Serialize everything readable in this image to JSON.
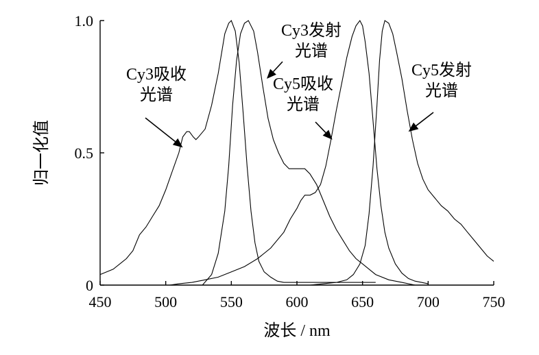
{
  "chart_data": {
    "type": "line",
    "xlabel": "波长 / nm",
    "ylabel": "归一化值",
    "xlim": [
      450,
      750
    ],
    "ylim": [
      0,
      1.0
    ],
    "xticks": [
      450,
      500,
      550,
      600,
      650,
      700,
      750
    ],
    "yticks": [
      0,
      0.5,
      1.0
    ],
    "ytick_labels": [
      "0",
      "0.5",
      "1.0"
    ],
    "grid": false,
    "series": [
      {
        "name": "Cy3吸收光谱",
        "points": [
          [
            450,
            0.04
          ],
          [
            460,
            0.06
          ],
          [
            470,
            0.1
          ],
          [
            475,
            0.13
          ],
          [
            480,
            0.19
          ],
          [
            485,
            0.22
          ],
          [
            490,
            0.26
          ],
          [
            495,
            0.3
          ],
          [
            500,
            0.36
          ],
          [
            505,
            0.43
          ],
          [
            510,
            0.5
          ],
          [
            513,
            0.56
          ],
          [
            516,
            0.58
          ],
          [
            518,
            0.58
          ],
          [
            521,
            0.56
          ],
          [
            523,
            0.55
          ],
          [
            525,
            0.56
          ],
          [
            530,
            0.59
          ],
          [
            535,
            0.68
          ],
          [
            540,
            0.8
          ],
          [
            545,
            0.95
          ],
          [
            548,
            0.99
          ],
          [
            550,
            1.0
          ],
          [
            553,
            0.96
          ],
          [
            556,
            0.84
          ],
          [
            559,
            0.65
          ],
          [
            562,
            0.45
          ],
          [
            565,
            0.28
          ],
          [
            568,
            0.16
          ],
          [
            571,
            0.09
          ],
          [
            575,
            0.05
          ],
          [
            580,
            0.03
          ],
          [
            585,
            0.015
          ],
          [
            590,
            0.01
          ],
          [
            600,
            0.01
          ],
          [
            610,
            0.01
          ],
          [
            620,
            0.01
          ],
          [
            630,
            0.01
          ],
          [
            640,
            0.01
          ],
          [
            650,
            0.01
          ],
          [
            660,
            0.01
          ]
        ]
      },
      {
        "name": "Cy3发射光谱",
        "points": [
          [
            528,
            0.0
          ],
          [
            535,
            0.04
          ],
          [
            540,
            0.12
          ],
          [
            545,
            0.28
          ],
          [
            548,
            0.45
          ],
          [
            551,
            0.68
          ],
          [
            554,
            0.85
          ],
          [
            557,
            0.95
          ],
          [
            560,
            0.99
          ],
          [
            563,
            1.0
          ],
          [
            567,
            0.96
          ],
          [
            570,
            0.88
          ],
          [
            574,
            0.75
          ],
          [
            578,
            0.63
          ],
          [
            582,
            0.55
          ],
          [
            586,
            0.5
          ],
          [
            590,
            0.46
          ],
          [
            594,
            0.44
          ],
          [
            598,
            0.44
          ],
          [
            602,
            0.44
          ],
          [
            606,
            0.44
          ],
          [
            610,
            0.42
          ],
          [
            615,
            0.38
          ],
          [
            620,
            0.32
          ],
          [
            625,
            0.26
          ],
          [
            630,
            0.21
          ],
          [
            635,
            0.17
          ],
          [
            640,
            0.13
          ],
          [
            645,
            0.1
          ],
          [
            650,
            0.08
          ],
          [
            655,
            0.06
          ],
          [
            660,
            0.04
          ],
          [
            670,
            0.02
          ],
          [
            680,
            0.01
          ],
          [
            690,
            0.0
          ]
        ]
      },
      {
        "name": "Cy5吸收光谱",
        "points": [
          [
            503,
            0.0
          ],
          [
            510,
            0.005
          ],
          [
            520,
            0.01
          ],
          [
            530,
            0.02
          ],
          [
            540,
            0.03
          ],
          [
            550,
            0.05
          ],
          [
            560,
            0.07
          ],
          [
            570,
            0.1
          ],
          [
            580,
            0.14
          ],
          [
            590,
            0.2
          ],
          [
            595,
            0.25
          ],
          [
            600,
            0.29
          ],
          [
            603,
            0.32
          ],
          [
            606,
            0.34
          ],
          [
            610,
            0.34
          ],
          [
            614,
            0.35
          ],
          [
            618,
            0.38
          ],
          [
            622,
            0.45
          ],
          [
            626,
            0.55
          ],
          [
            630,
            0.66
          ],
          [
            634,
            0.76
          ],
          [
            638,
            0.86
          ],
          [
            642,
            0.94
          ],
          [
            645,
            0.98
          ],
          [
            648,
            1.0
          ],
          [
            650,
            0.98
          ],
          [
            652,
            0.92
          ],
          [
            655,
            0.8
          ],
          [
            658,
            0.62
          ],
          [
            661,
            0.44
          ],
          [
            664,
            0.3
          ],
          [
            667,
            0.2
          ],
          [
            670,
            0.14
          ],
          [
            675,
            0.08
          ],
          [
            680,
            0.045
          ],
          [
            685,
            0.025
          ],
          [
            690,
            0.015
          ],
          [
            695,
            0.01
          ],
          [
            700,
            0.005
          ]
        ]
      },
      {
        "name": "Cy5发射光谱",
        "points": [
          [
            610,
            0.0
          ],
          [
            620,
            0.005
          ],
          [
            630,
            0.01
          ],
          [
            638,
            0.02
          ],
          [
            643,
            0.04
          ],
          [
            648,
            0.08
          ],
          [
            652,
            0.15
          ],
          [
            655,
            0.27
          ],
          [
            658,
            0.45
          ],
          [
            661,
            0.68
          ],
          [
            663,
            0.85
          ],
          [
            665,
            0.96
          ],
          [
            667,
            1.0
          ],
          [
            670,
            0.99
          ],
          [
            673,
            0.95
          ],
          [
            676,
            0.88
          ],
          [
            680,
            0.78
          ],
          [
            684,
            0.66
          ],
          [
            688,
            0.55
          ],
          [
            692,
            0.46
          ],
          [
            696,
            0.4
          ],
          [
            700,
            0.36
          ],
          [
            705,
            0.33
          ],
          [
            710,
            0.3
          ],
          [
            715,
            0.28
          ],
          [
            720,
            0.25
          ],
          [
            725,
            0.23
          ],
          [
            730,
            0.2
          ],
          [
            735,
            0.17
          ],
          [
            740,
            0.14
          ],
          [
            745,
            0.11
          ],
          [
            750,
            0.09
          ]
        ]
      }
    ],
    "annotations": [
      {
        "lines": [
          "Cy3吸收",
          "光谱"
        ],
        "target": [
          513,
          0.52
        ]
      },
      {
        "lines": [
          "Cy3发射",
          "光谱"
        ],
        "target": [
          577,
          0.78
        ]
      },
      {
        "lines": [
          "Cy5吸收",
          "光谱"
        ],
        "target": [
          627,
          0.55
        ]
      },
      {
        "lines": [
          "Cy5发射",
          "光谱"
        ],
        "target": [
          685,
          0.58
        ]
      }
    ]
  }
}
